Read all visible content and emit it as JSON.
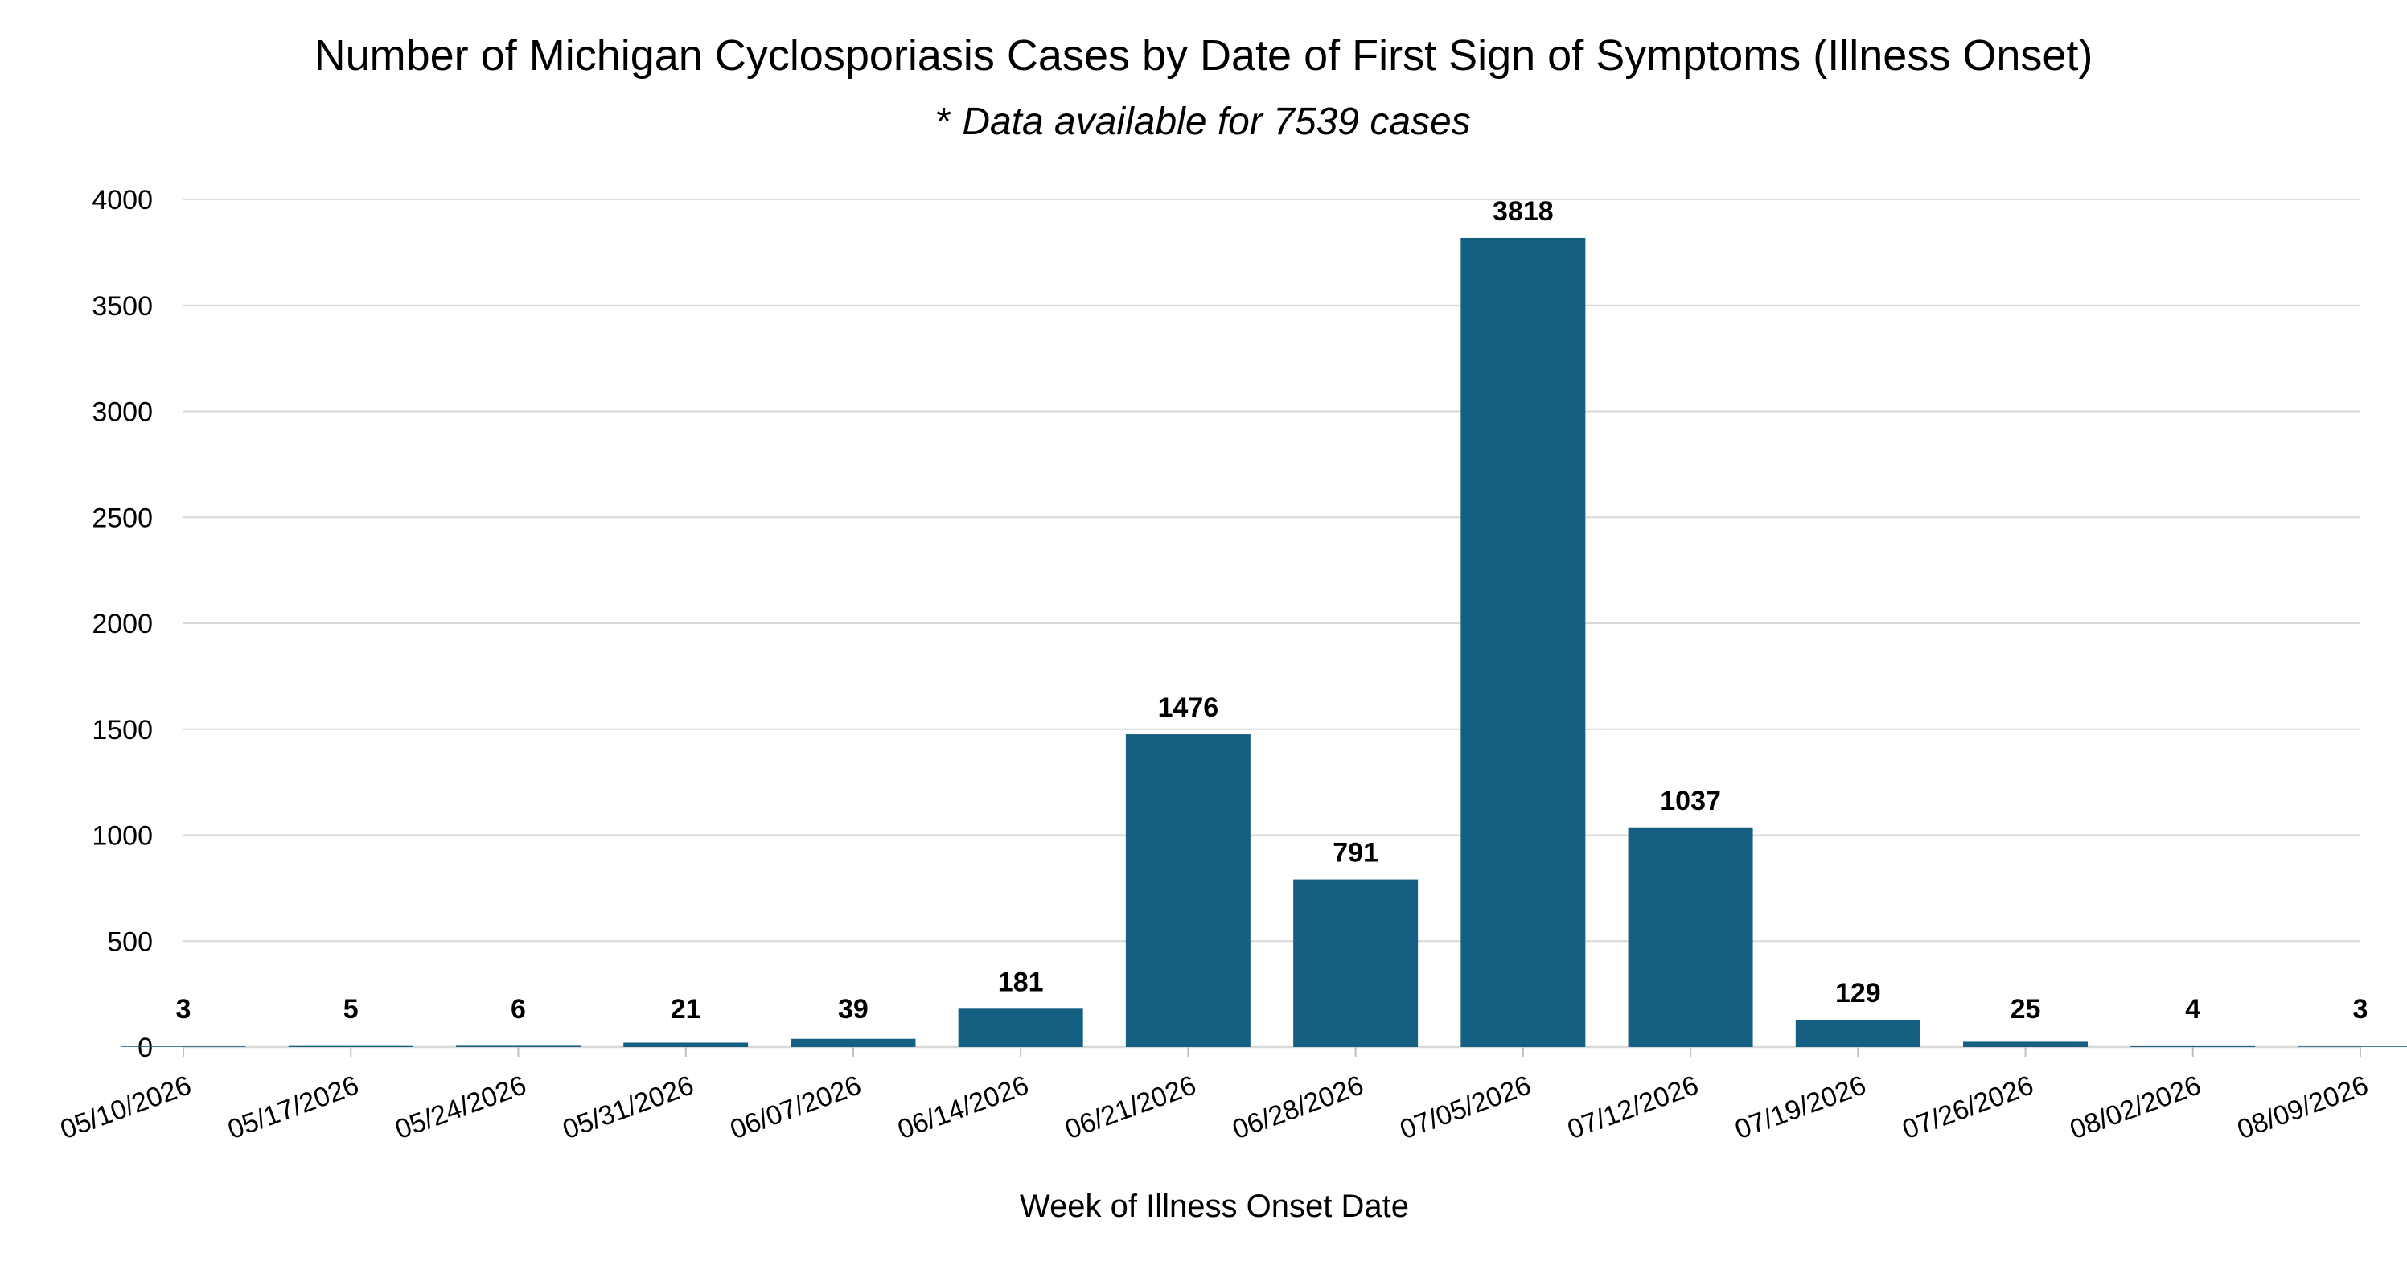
{
  "chart_data": {
    "type": "bar",
    "title": "Number of Michigan Cyclosporiasis Cases by Date of First Sign of Symptoms (Illness Onset)",
    "subtitle_mark": "*",
    "subtitle": "Data available for 7539 cases",
    "xlabel": "Week of Illness Onset Date",
    "ylabel": "",
    "ylim": [
      0,
      4000
    ],
    "yticks": [
      "0",
      "500",
      "1000",
      "1500",
      "2000",
      "2500",
      "3000",
      "3500",
      "4000"
    ],
    "grid": true,
    "legend": "none",
    "bar_color": "#156082",
    "categories": [
      "05/10/2026",
      "05/17/2026",
      "05/24/2026",
      "05/31/2026",
      "06/07/2026",
      "06/14/2026",
      "06/21/2026",
      "06/28/2026",
      "07/05/2026",
      "07/12/2026",
      "07/19/2026",
      "07/26/2026",
      "08/02/2026",
      "08/09/2026"
    ],
    "values": [
      3,
      5,
      6,
      21,
      39,
      181,
      1476,
      791,
      3818,
      1037,
      129,
      25,
      4,
      3
    ]
  }
}
